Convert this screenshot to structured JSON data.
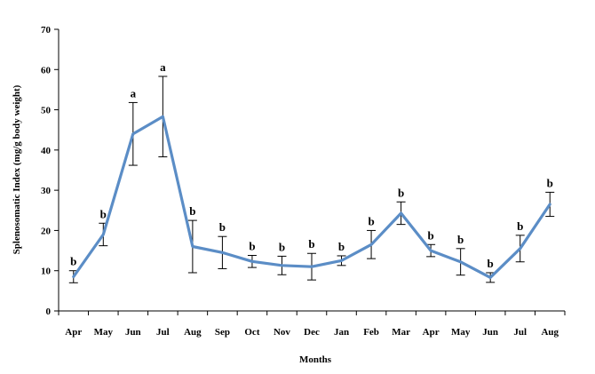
{
  "chart_data": {
    "type": "line",
    "title": "",
    "xlabel": "Months",
    "ylabel": "Splenosomatic Index (mg/g body weight)",
    "ylim": [
      0,
      70
    ],
    "yticks": [
      0,
      10,
      20,
      30,
      40,
      50,
      60,
      70
    ],
    "grid": false,
    "legend": "none",
    "categories": [
      "Apr",
      "May",
      "Jun",
      "Jul",
      "Aug",
      "Sep",
      "Oct",
      "Nov",
      "Dec",
      "Jan",
      "Feb",
      "Mar",
      "Apr",
      "May",
      "Jun",
      "Jul",
      "Aug"
    ],
    "series": [
      {
        "values": [
          8.5,
          19,
          44,
          48.3,
          16,
          14.5,
          12.3,
          11.3,
          11,
          12.5,
          16.5,
          24.3,
          15,
          12.2,
          8.3,
          15.5,
          26.5
        ],
        "error": [
          1.5,
          2.8,
          7.8,
          10,
          6.5,
          4,
          1.5,
          2.3,
          3.3,
          1.2,
          3.5,
          2.8,
          1.5,
          3.3,
          1.2,
          3.3,
          3
        ],
        "significance": [
          "b",
          "b",
          "a",
          "a",
          "b",
          "b",
          "b",
          "b",
          "b",
          "b",
          "b",
          "b",
          "b",
          "b",
          "b",
          "b",
          "b"
        ],
        "color": "#5B8DC6"
      }
    ]
  }
}
